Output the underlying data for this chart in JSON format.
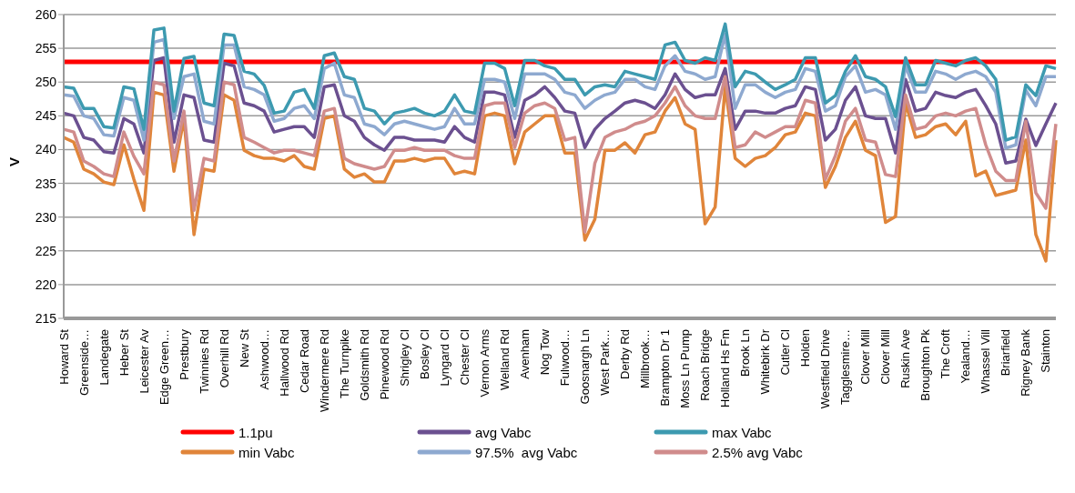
{
  "chart_data": {
    "type": "line",
    "ylabel": "V",
    "categories": [
      "Howard St",
      null,
      "Greenside…",
      null,
      "Landegate",
      null,
      "Heber St",
      null,
      "Leicester Av",
      null,
      "Edge Green…",
      null,
      "Prestbury",
      null,
      "Twinnies Rd",
      null,
      "Overhill Rd",
      null,
      "New St",
      null,
      "Ashwood…",
      null,
      "Hallwood Rd",
      null,
      "Cedar Road",
      null,
      "Windermere Rd",
      null,
      "The Turnpike",
      null,
      "Goldsmith Rd",
      null,
      "Pinewood Rd",
      null,
      "Shrigley Cl",
      null,
      "Bosley Cl",
      null,
      "Lyngard Cl",
      null,
      "Chester Cl",
      null,
      "Vernon Arms",
      null,
      "Welland Rd",
      null,
      "Avenham",
      null,
      "Nog Tow",
      null,
      "Fulwood…",
      null,
      "Goosnargh Ln",
      null,
      "West Park…",
      null,
      "Derby Rd",
      null,
      "Millbrook…",
      null,
      "Brampton Dr 1",
      null,
      "Moss Ln Pump",
      null,
      "Roach Bridge",
      null,
      "Holland Hs Fm",
      null,
      "Brook Ln",
      null,
      "Whitebirk Dr",
      null,
      "Cutler Cl",
      null,
      "Holden",
      null,
      "Westfield Drive",
      null,
      "Tagglesmire…",
      null,
      "Clover Mill",
      null,
      "Clover Mill",
      null,
      "Ruskin Ave",
      null,
      "Broughton Pk",
      null,
      "The Croft",
      null,
      "Yealand…",
      null,
      "Whassel Vill",
      null,
      "Briarfield",
      null,
      "Rigney Bank",
      null,
      "Stainton",
      null
    ],
    "series": [
      {
        "name": "min Vabc",
        "color": "#e0853a",
        "values": [
          241.8,
          241.1,
          237.1,
          236.4,
          235.2,
          234.8,
          240.7,
          235.6,
          231,
          248.5,
          248.1,
          236.8,
          244.6,
          227.4,
          237.1,
          236.8,
          248.1,
          247.3,
          239.9,
          239.1,
          238.7,
          238.7,
          238.3,
          239.1,
          237.5,
          237.1,
          244.6,
          245,
          237.1,
          235.9,
          236.4,
          235.2,
          235.2,
          238.3,
          238.3,
          238.7,
          238.3,
          238.7,
          238.7,
          236.4,
          236.8,
          236.4,
          245,
          245.4,
          245,
          237.9,
          242.6,
          243.8,
          245,
          245,
          239.5,
          239.5,
          226.6,
          229.7,
          239.9,
          239.9,
          241,
          239.5,
          242.2,
          242.6,
          245.7,
          247.7,
          243.8,
          243,
          229,
          231.5,
          249.3,
          238.7,
          237.5,
          238.7,
          239.1,
          240.3,
          242.2,
          242.6,
          245.4,
          245,
          234.4,
          237.5,
          241.8,
          244.2,
          239.9,
          239.1,
          229.2,
          230.1,
          246.9,
          241.8,
          242.2,
          243.4,
          243.8,
          242.2,
          244.2,
          236.1,
          236.8,
          233.2,
          233.6,
          234,
          241.4,
          227.4,
          223.5,
          241.4
        ]
      },
      {
        "name": "avg Vabc",
        "color": "#6b5090",
        "values": [
          245.4,
          245,
          241.8,
          241.4,
          239.7,
          239.5,
          244.6,
          243.8,
          239.5,
          253.2,
          253.6,
          241.1,
          248.1,
          247.7,
          241.4,
          241.1,
          252.8,
          252.4,
          246.9,
          246.5,
          245.7,
          242.6,
          243,
          243.4,
          243.4,
          241.8,
          249.3,
          249.6,
          245,
          244.2,
          241.8,
          240.7,
          239.9,
          241.8,
          241.8,
          241.4,
          241.4,
          241.4,
          241.1,
          243.4,
          241.8,
          241.1,
          248.5,
          248.5,
          248.1,
          241.8,
          247.3,
          248.1,
          249.3,
          247.7,
          245.7,
          245.4,
          240.3,
          243,
          244.6,
          245.7,
          246.9,
          247.3,
          246.9,
          246.1,
          248.1,
          251.2,
          248.9,
          247.7,
          248.1,
          248.1,
          252,
          243,
          245.7,
          245.7,
          245.4,
          245.4,
          246.1,
          246.5,
          249.3,
          248.9,
          241.4,
          243,
          247.3,
          249.3,
          245,
          244.6,
          244.6,
          239.5,
          250.4,
          245.7,
          246.1,
          248.5,
          248,
          247.7,
          248.5,
          248.9,
          246.5,
          243.8,
          238,
          238.3,
          244.5,
          240.6,
          243.8,
          246.9
        ]
      },
      {
        "name": "97.5%  avg Vabc",
        "color": "#8ea9d0",
        "values": [
          248.1,
          247.9,
          245,
          244.6,
          242.2,
          242,
          247.7,
          247.3,
          241.4,
          255.9,
          256.3,
          244.6,
          250.8,
          251.2,
          244.2,
          243.8,
          255.5,
          255.5,
          249.3,
          248.9,
          248.1,
          244.2,
          244.6,
          246.1,
          246.5,
          244.6,
          252,
          252.8,
          248.1,
          247.7,
          243.8,
          243.4,
          242.2,
          243.8,
          244.2,
          243.8,
          243.4,
          243,
          243.4,
          246.1,
          243.8,
          243.8,
          250.4,
          250.4,
          250,
          244.6,
          251.2,
          251.2,
          251.2,
          250.4,
          248.5,
          248.1,
          246.1,
          247.3,
          248.1,
          248.5,
          250.4,
          250.4,
          249.3,
          248.9,
          252.4,
          253.9,
          251.6,
          251.2,
          250.4,
          250.8,
          257.1,
          246.1,
          249.6,
          249.6,
          248.5,
          247.7,
          248.5,
          248.9,
          252,
          251.6,
          245.7,
          246.5,
          250.8,
          252.4,
          248.5,
          248.9,
          248.1,
          243,
          252.4,
          248.5,
          248.5,
          251.6,
          251.2,
          250.4,
          251.2,
          251.6,
          250.8,
          248.5,
          240.2,
          240.7,
          248.8,
          246.5,
          250.8,
          250.8
        ]
      },
      {
        "name": "max Vabc",
        "color": "#3d9ab0",
        "values": [
          249.3,
          249.1,
          246.1,
          246.1,
          243.4,
          243.2,
          249.3,
          249,
          243,
          257.7,
          258,
          245.7,
          253.5,
          253.8,
          246.9,
          246.5,
          257.1,
          256.9,
          251.6,
          251.2,
          249.5,
          245.4,
          245.7,
          248.5,
          248.9,
          246.1,
          253.9,
          254.3,
          250.8,
          250.4,
          246.1,
          245.7,
          243.8,
          245.4,
          245.7,
          246.1,
          245.4,
          245,
          245.7,
          248.1,
          245.7,
          245.4,
          252.8,
          252.8,
          252,
          246.5,
          253.2,
          253.2,
          252.4,
          252,
          250.4,
          250.4,
          248.1,
          249.3,
          249.6,
          249.3,
          251.6,
          251.2,
          250.8,
          250.4,
          255.5,
          255.9,
          253.2,
          252.8,
          253.6,
          253.2,
          258.6,
          249.3,
          251.6,
          251.2,
          250,
          248.9,
          249.6,
          250.4,
          253.6,
          253.6,
          246.9,
          248,
          251.6,
          253.9,
          250.8,
          250.4,
          249.3,
          244.9,
          253.6,
          249.6,
          249.6,
          253.2,
          252.8,
          252.4,
          253.2,
          253.6,
          252.4,
          250.4,
          241.4,
          241.9,
          249.6,
          248,
          252.4,
          252
        ]
      },
      {
        "name": "2.5% avg Vabc",
        "color": "#d08c8c",
        "values": [
          243,
          242.6,
          238.3,
          237.5,
          236.4,
          236,
          242.6,
          239,
          236.4,
          250,
          249.6,
          238.3,
          245.7,
          231,
          238.7,
          238.3,
          250,
          249.6,
          241.8,
          241.1,
          240.3,
          239.5,
          239.9,
          239.9,
          239.5,
          239.1,
          245.7,
          246.1,
          238.7,
          237.9,
          237.5,
          237.1,
          237.5,
          239.9,
          239.9,
          240.3,
          239.9,
          239.9,
          239.9,
          239.1,
          238.7,
          238.7,
          246.5,
          246.9,
          246.9,
          240.3,
          245.4,
          246.5,
          246.9,
          246.1,
          241.4,
          241.8,
          227.8,
          238,
          241.8,
          242.6,
          243,
          243.8,
          244.2,
          245,
          246.9,
          249.3,
          246.5,
          245,
          244.6,
          244.6,
          250.8,
          240.3,
          240.7,
          242.6,
          241.8,
          242.6,
          243.4,
          243.4,
          247.3,
          246.9,
          235.6,
          239.1,
          244.2,
          246.1,
          241.4,
          241.1,
          236.3,
          236,
          248.1,
          243,
          243.4,
          245,
          245.4,
          245,
          245.7,
          246.1,
          240.7,
          236.8,
          235.4,
          235.4,
          244.2,
          233.6,
          231.3,
          243.8
        ]
      }
    ],
    "ref_lines": [
      {
        "axis": "y",
        "value": 253,
        "label": "1.1pu",
        "color": "#ff0000"
      }
    ],
    "ylim": [
      215,
      260
    ],
    "yticks": [
      215,
      220,
      225,
      230,
      235,
      240,
      245,
      250,
      255,
      260
    ],
    "grid": "y",
    "legend": "bottom"
  }
}
